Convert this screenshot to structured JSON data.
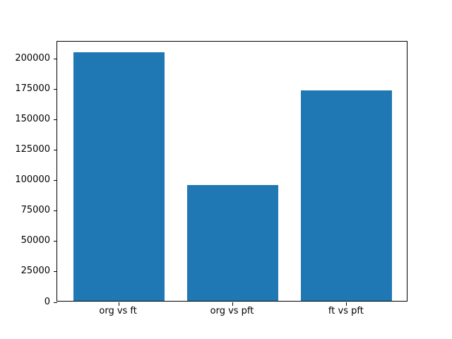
{
  "figure": {
    "background": "#ffffff",
    "title": ""
  },
  "chart_data": {
    "type": "bar",
    "categories": [
      "org vs ft",
      "org vs pft",
      "ft vs pft"
    ],
    "values": [
      204000,
      95000,
      173000
    ],
    "title": "",
    "xlabel": "",
    "ylabel": "",
    "ylim": [
      0,
      214000
    ],
    "yticks": [
      0,
      25000,
      50000,
      75000,
      100000,
      125000,
      150000,
      175000,
      200000
    ],
    "ytick_labels": [
      "0",
      "25000",
      "50000",
      "75000",
      "100000",
      "125000",
      "150000",
      "175000",
      "200000"
    ],
    "bar_color": "#1f77b4",
    "axis_color": "#000000",
    "bar_width_fraction": 0.8,
    "grid": false,
    "legend": null
  }
}
